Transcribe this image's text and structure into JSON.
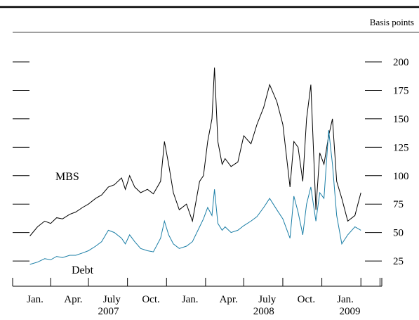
{
  "chart_data": {
    "type": "line",
    "unit_label": "Basis points",
    "ylim": [
      0,
      212
    ],
    "y_ticks": [
      25,
      50,
      75,
      100,
      125,
      150,
      175,
      200
    ],
    "x_tick_labels": [
      "Jan.",
      "Apr.",
      "July",
      "Oct.",
      "Jan.",
      "Apr.",
      "July",
      "Oct.",
      "Jan."
    ],
    "year_labels": [
      "2007",
      "2008",
      "2009"
    ],
    "grid": false,
    "series": [
      {
        "name": "MBS",
        "color": "#000000",
        "x": [
          "2006-12-28",
          "2007-01-15",
          "2007-02-01",
          "2007-02-15",
          "2007-03-01",
          "2007-03-15",
          "2007-04-01",
          "2007-04-15",
          "2007-05-01",
          "2007-05-15",
          "2007-06-01",
          "2007-06-15",
          "2007-07-01",
          "2007-07-15",
          "2007-08-01",
          "2007-08-10",
          "2007-08-20",
          "2007-09-01",
          "2007-09-15",
          "2007-10-01",
          "2007-10-15",
          "2007-11-01",
          "2007-11-10",
          "2007-11-20",
          "2007-12-01",
          "2007-12-15",
          "2008-01-01",
          "2008-01-15",
          "2008-02-01",
          "2008-02-10",
          "2008-02-20",
          "2008-03-01",
          "2008-03-07",
          "2008-03-15",
          "2008-03-25",
          "2008-04-01",
          "2008-04-15",
          "2008-05-01",
          "2008-05-15",
          "2008-06-01",
          "2008-06-15",
          "2008-07-01",
          "2008-07-15",
          "2008-08-01",
          "2008-08-15",
          "2008-09-01",
          "2008-09-10",
          "2008-09-20",
          "2008-10-01",
          "2008-10-10",
          "2008-10-20",
          "2008-11-01",
          "2008-11-10",
          "2008-11-20",
          "2008-12-01",
          "2008-12-10",
          "2008-12-20",
          "2009-01-01",
          "2009-01-15",
          "2009-02-01",
          "2009-02-15"
        ],
        "values": [
          47,
          55,
          60,
          58,
          63,
          62,
          66,
          68,
          72,
          75,
          80,
          83,
          90,
          92,
          98,
          88,
          100,
          90,
          85,
          88,
          84,
          95,
          130,
          110,
          85,
          70,
          75,
          60,
          95,
          100,
          130,
          150,
          195,
          130,
          110,
          115,
          108,
          112,
          135,
          128,
          145,
          160,
          180,
          165,
          145,
          90,
          130,
          125,
          95,
          150,
          180,
          70,
          120,
          110,
          135,
          150,
          95,
          80,
          60,
          65,
          85
        ]
      },
      {
        "name": "Debt",
        "color": "#1a7ea6",
        "x": [
          "2006-12-28",
          "2007-01-15",
          "2007-02-01",
          "2007-02-15",
          "2007-03-01",
          "2007-03-15",
          "2007-04-01",
          "2007-04-15",
          "2007-05-01",
          "2007-05-15",
          "2007-06-01",
          "2007-06-15",
          "2007-07-01",
          "2007-07-15",
          "2007-08-01",
          "2007-08-10",
          "2007-08-20",
          "2007-09-01",
          "2007-09-15",
          "2007-10-01",
          "2007-10-15",
          "2007-11-01",
          "2007-11-10",
          "2007-11-20",
          "2007-12-01",
          "2007-12-15",
          "2008-01-01",
          "2008-01-15",
          "2008-02-01",
          "2008-02-10",
          "2008-02-20",
          "2008-03-01",
          "2008-03-07",
          "2008-03-15",
          "2008-03-25",
          "2008-04-01",
          "2008-04-15",
          "2008-05-01",
          "2008-05-15",
          "2008-06-01",
          "2008-06-15",
          "2008-07-01",
          "2008-07-15",
          "2008-08-01",
          "2008-08-15",
          "2008-09-01",
          "2008-09-10",
          "2008-09-20",
          "2008-10-01",
          "2008-10-10",
          "2008-10-20",
          "2008-11-01",
          "2008-11-10",
          "2008-11-20",
          "2008-12-01",
          "2008-12-10",
          "2008-12-20",
          "2009-01-01",
          "2009-01-15",
          "2009-02-01",
          "2009-02-15"
        ],
        "values": [
          22,
          24,
          27,
          26,
          29,
          28,
          30,
          30,
          32,
          34,
          38,
          42,
          52,
          50,
          45,
          40,
          48,
          42,
          36,
          34,
          33,
          45,
          60,
          48,
          40,
          36,
          38,
          42,
          55,
          62,
          72,
          65,
          88,
          58,
          52,
          55,
          50,
          52,
          56,
          60,
          64,
          72,
          80,
          70,
          62,
          45,
          82,
          68,
          48,
          75,
          90,
          60,
          85,
          80,
          140,
          110,
          65,
          40,
          48,
          55,
          52
        ]
      }
    ],
    "annotations": [
      {
        "text": "MBS",
        "near": "2007-06"
      },
      {
        "text": "Debt",
        "near": "2007-05"
      }
    ]
  }
}
